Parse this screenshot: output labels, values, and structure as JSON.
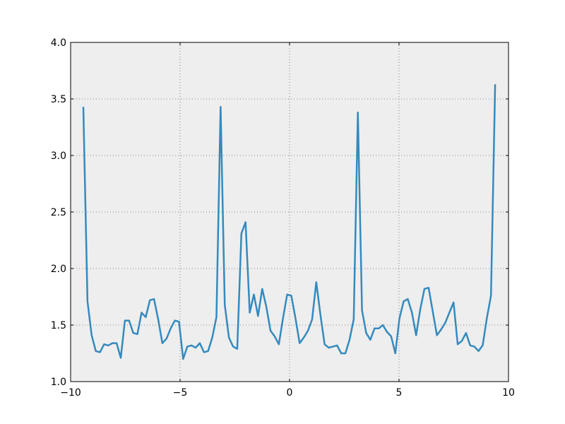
{
  "chart_data": {
    "type": "line",
    "title": "",
    "xlabel": "",
    "ylabel": "",
    "xlim": [
      -10,
      10
    ],
    "ylim": [
      1.0,
      4.0
    ],
    "grid": true,
    "x_ticks": [
      -10,
      -5,
      0,
      5,
      10
    ],
    "x_tick_labels": [
      "−10",
      "−5",
      "0",
      "5",
      "10"
    ],
    "y_ticks": [
      1.0,
      1.5,
      2.0,
      2.5,
      3.0,
      3.5,
      4.0
    ],
    "y_tick_labels": [
      "1.0",
      "1.5",
      "2.0",
      "2.5",
      "3.0",
      "3.5",
      "4.0"
    ],
    "colors": {
      "line": "#348ABD",
      "plot_bg": "#EEEEEE",
      "grid": "#666666"
    },
    "series": [
      {
        "x": [
          -9.42,
          -9.23,
          -9.04,
          -8.85,
          -8.66,
          -8.47,
          -8.28,
          -8.09,
          -7.9,
          -7.71,
          -7.52,
          -7.33,
          -7.14,
          -6.95,
          -6.76,
          -6.57,
          -6.38,
          -6.19,
          -6.0,
          -5.81,
          -5.62,
          -5.43,
          -5.24,
          -5.05,
          -4.86,
          -4.67,
          -4.48,
          -4.29,
          -4.1,
          -3.91,
          -3.72,
          -3.53,
          -3.34,
          -3.15,
          -2.96,
          -2.77,
          -2.58,
          -2.39,
          -2.2,
          -2.01,
          -1.82,
          -1.63,
          -1.44,
          -1.25,
          -1.06,
          -0.87,
          -0.68,
          -0.49,
          -0.3,
          -0.11,
          0.08,
          0.27,
          0.46,
          0.65,
          0.84,
          1.03,
          1.22,
          1.41,
          1.6,
          1.79,
          1.98,
          2.17,
          2.36,
          2.55,
          2.74,
          2.93,
          3.12,
          3.31,
          3.5,
          3.69,
          3.88,
          4.07,
          4.26,
          4.45,
          4.64,
          4.83,
          5.02,
          5.21,
          5.4,
          5.59,
          5.78,
          5.97,
          6.16,
          6.35,
          6.54,
          6.73,
          6.92,
          7.11,
          7.3,
          7.49,
          7.68,
          7.87,
          8.06,
          8.25,
          8.44,
          8.63,
          8.82,
          9.01,
          9.2,
          9.39
        ],
        "values": [
          3.43,
          1.71,
          1.41,
          1.27,
          1.26,
          1.33,
          1.32,
          1.34,
          1.34,
          1.21,
          1.54,
          1.54,
          1.43,
          1.42,
          1.61,
          1.57,
          1.72,
          1.73,
          1.55,
          1.34,
          1.38,
          1.47,
          1.54,
          1.53,
          1.2,
          1.31,
          1.32,
          1.3,
          1.34,
          1.26,
          1.27,
          1.39,
          1.57,
          3.43,
          1.68,
          1.39,
          1.31,
          1.29,
          2.31,
          2.41,
          1.61,
          1.77,
          1.58,
          1.82,
          1.66,
          1.45,
          1.4,
          1.33,
          1.56,
          1.77,
          1.76,
          1.56,
          1.34,
          1.39,
          1.45,
          1.55,
          1.88,
          1.59,
          1.33,
          1.3,
          1.31,
          1.32,
          1.25,
          1.25,
          1.37,
          1.55,
          3.38,
          1.63,
          1.43,
          1.37,
          1.47,
          1.47,
          1.5,
          1.44,
          1.4,
          1.25,
          1.56,
          1.71,
          1.73,
          1.61,
          1.41,
          1.64,
          1.82,
          1.83,
          1.62,
          1.41,
          1.46,
          1.52,
          1.61,
          1.7,
          1.33,
          1.36,
          1.43,
          1.32,
          1.31,
          1.27,
          1.32,
          1.56,
          1.76,
          3.63
        ]
      }
    ]
  }
}
